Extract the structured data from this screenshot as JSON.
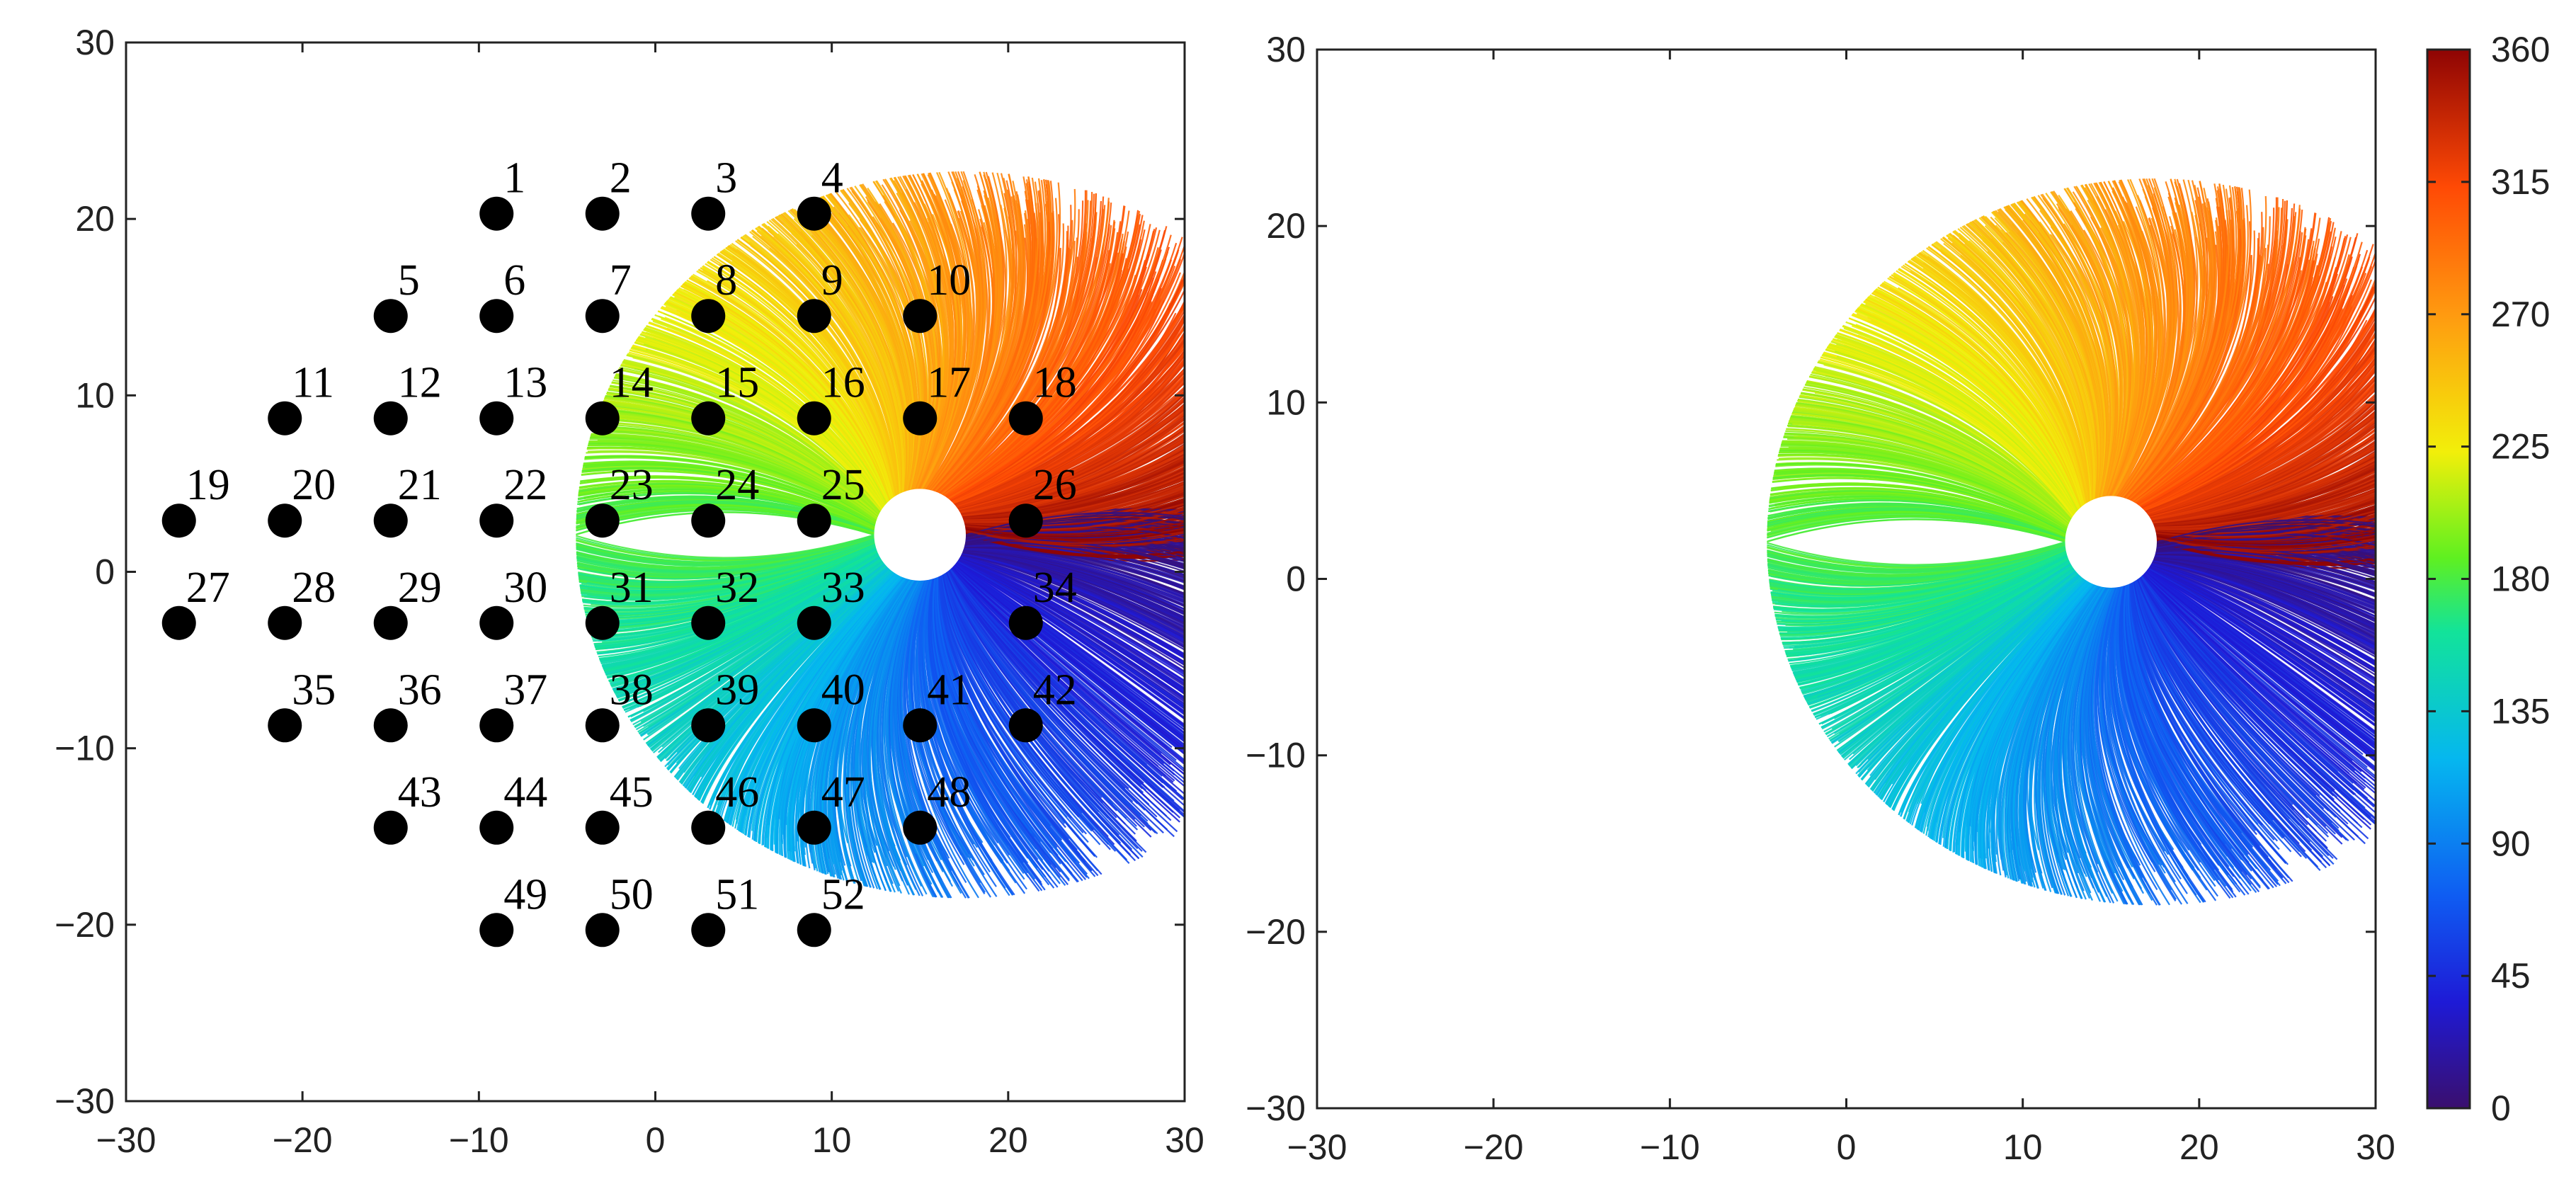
{
  "chart_data": [
    {
      "type": "scatter",
      "panel": "left",
      "xlim": [
        -30,
        30
      ],
      "ylim": [
        -30,
        30
      ],
      "xticks": [
        "−30",
        "−20",
        "−10",
        "0",
        "10",
        "20",
        "30"
      ],
      "yticks": [
        "30",
        "20",
        "10",
        "0",
        "−10",
        "−20",
        "−30"
      ],
      "title": "",
      "xlabel": "",
      "ylabel": "",
      "grid": false,
      "background": "fiber trajectories colored by angle (0–360), centered disc at (15, 2)",
      "points": [
        {
          "label": "1",
          "x": -9,
          "y": 20.3
        },
        {
          "label": "2",
          "x": -3,
          "y": 20.3
        },
        {
          "label": "3",
          "x": 3,
          "y": 20.3
        },
        {
          "label": "4",
          "x": 9,
          "y": 20.3
        },
        {
          "label": "5",
          "x": -15,
          "y": 14.5
        },
        {
          "label": "6",
          "x": -9,
          "y": 14.5
        },
        {
          "label": "7",
          "x": -3,
          "y": 14.5
        },
        {
          "label": "8",
          "x": 3,
          "y": 14.5
        },
        {
          "label": "9",
          "x": 9,
          "y": 14.5
        },
        {
          "label": "10",
          "x": 15,
          "y": 14.5
        },
        {
          "label": "11",
          "x": -21,
          "y": 8.7
        },
        {
          "label": "12",
          "x": -15,
          "y": 8.7
        },
        {
          "label": "13",
          "x": -9,
          "y": 8.7
        },
        {
          "label": "14",
          "x": -3,
          "y": 8.7
        },
        {
          "label": "15",
          "x": 3,
          "y": 8.7
        },
        {
          "label": "16",
          "x": 9,
          "y": 8.7
        },
        {
          "label": "17",
          "x": 15,
          "y": 8.7
        },
        {
          "label": "18",
          "x": 21,
          "y": 8.7
        },
        {
          "label": "19",
          "x": -27,
          "y": 2.9
        },
        {
          "label": "20",
          "x": -21,
          "y": 2.9
        },
        {
          "label": "21",
          "x": -15,
          "y": 2.9
        },
        {
          "label": "22",
          "x": -9,
          "y": 2.9
        },
        {
          "label": "23",
          "x": -3,
          "y": 2.9
        },
        {
          "label": "24",
          "x": 3,
          "y": 2.9
        },
        {
          "label": "25",
          "x": 9,
          "y": 2.9
        },
        {
          "label": "26",
          "x": 21,
          "y": 2.9
        },
        {
          "label": "27",
          "x": -27,
          "y": -2.9
        },
        {
          "label": "28",
          "x": -21,
          "y": -2.9
        },
        {
          "label": "29",
          "x": -15,
          "y": -2.9
        },
        {
          "label": "30",
          "x": -9,
          "y": -2.9
        },
        {
          "label": "31",
          "x": -3,
          "y": -2.9
        },
        {
          "label": "32",
          "x": 3,
          "y": -2.9
        },
        {
          "label": "33",
          "x": 9,
          "y": -2.9
        },
        {
          "label": "34",
          "x": 21,
          "y": -2.9
        },
        {
          "label": "35",
          "x": -21,
          "y": -8.7
        },
        {
          "label": "36",
          "x": -15,
          "y": -8.7
        },
        {
          "label": "37",
          "x": -9,
          "y": -8.7
        },
        {
          "label": "38",
          "x": -3,
          "y": -8.7
        },
        {
          "label": "39",
          "x": 3,
          "y": -8.7
        },
        {
          "label": "40",
          "x": 9,
          "y": -8.7
        },
        {
          "label": "41",
          "x": 15,
          "y": -8.7
        },
        {
          "label": "42",
          "x": 21,
          "y": -8.7
        },
        {
          "label": "43",
          "x": -15,
          "y": -14.5
        },
        {
          "label": "44",
          "x": -9,
          "y": -14.5
        },
        {
          "label": "45",
          "x": -3,
          "y": -14.5
        },
        {
          "label": "46",
          "x": 3,
          "y": -14.5
        },
        {
          "label": "47",
          "x": 9,
          "y": -14.5
        },
        {
          "label": "48",
          "x": 15,
          "y": -14.5
        },
        {
          "label": "49",
          "x": -9,
          "y": -20.3
        },
        {
          "label": "50",
          "x": -3,
          "y": -20.3
        },
        {
          "label": "51",
          "x": 3,
          "y": -20.3
        },
        {
          "label": "52",
          "x": 9,
          "y": -20.3
        }
      ]
    },
    {
      "type": "heatmap",
      "panel": "right",
      "xlim": [
        -30,
        30
      ],
      "ylim": [
        -30,
        30
      ],
      "xticks": [
        "−30",
        "−20",
        "−10",
        "0",
        "10",
        "20",
        "30"
      ],
      "yticks": [
        "30",
        "20",
        "10",
        "0",
        "−10",
        "−20",
        "−30"
      ],
      "title": "",
      "xlabel": "",
      "ylabel": "",
      "grid": false,
      "colorbar": {
        "range": [
          0,
          360
        ],
        "ticks": [
          "360",
          "315",
          "270",
          "225",
          "180",
          "135",
          "90",
          "45",
          "0"
        ],
        "colormap": "jet",
        "placement": "right"
      }
    }
  ],
  "colors": {
    "marker": "#000000",
    "axis": "#222222",
    "jet_stops": [
      "#3a0f6e",
      "#1e1ad6",
      "#0f5cf2",
      "#05b7ef",
      "#12e39a",
      "#5ff020",
      "#f2ef0a",
      "#ff9a10",
      "#ff4a05",
      "#8e0404"
    ]
  }
}
